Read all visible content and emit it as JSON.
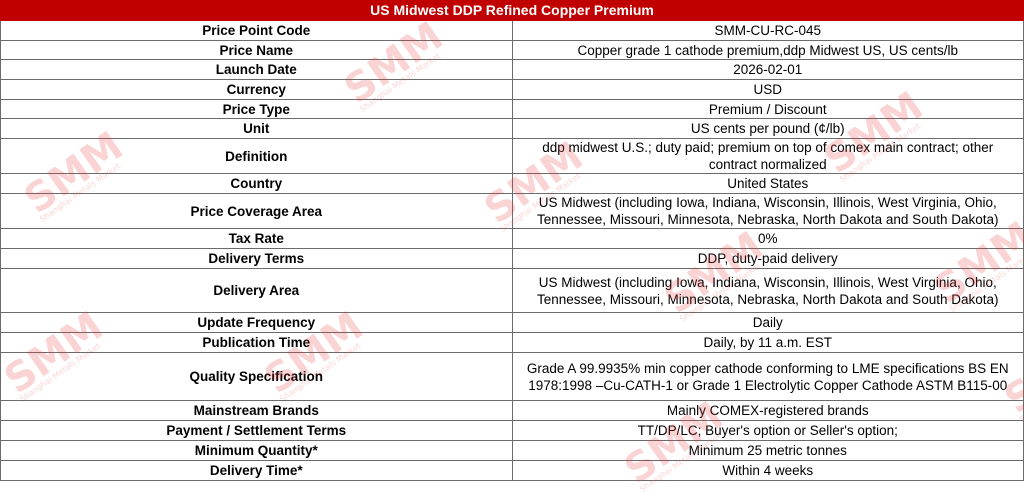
{
  "title": "US Midwest DDP Refined Copper Premium",
  "watermark": {
    "logo": "SMM",
    "subtitle": "Shanghai Metals Market"
  },
  "colors": {
    "header_bg": "#c00000",
    "header_text": "#ffffff",
    "watermark": "#e63c3c"
  },
  "rows": [
    {
      "label": "Price Point Code",
      "value": "SMM-CU-RC-045"
    },
    {
      "label": "Price Name",
      "value": "Copper grade 1 cathode premium,ddp Midwest US, US cents/lb"
    },
    {
      "label": "Launch Date",
      "value": "2026-02-01"
    },
    {
      "label": "Currency",
      "value": "USD"
    },
    {
      "label": "Price Type",
      "value": "Premium / Discount"
    },
    {
      "label": "Unit",
      "value": "US cents per pound (¢/lb)"
    },
    {
      "label": "Definition",
      "value": "ddp midwest U.S.; duty paid; premium on top of comex main contract; other contract normalized"
    },
    {
      "label": "Country",
      "value": "United States"
    },
    {
      "label": "Price Coverage Area",
      "value": "US Midwest (including Iowa, Indiana, Wisconsin, Illinois, West Virginia, Ohio, Tennessee, Missouri, Minnesota, Nebraska, North Dakota and South Dakota)"
    },
    {
      "label": "Tax Rate",
      "value": "0%"
    },
    {
      "label": "Delivery Terms",
      "value": "DDP, duty-paid delivery"
    },
    {
      "label": "Delivery Area",
      "value": "US Midwest (including Iowa, Indiana, Wisconsin, Illinois, West Virginia, Ohio, Tennessee, Missouri, Minnesota, Nebraska, North Dakota and South Dakota)"
    },
    {
      "label": "Update Frequency",
      "value": "Daily"
    },
    {
      "label": "Publication Time",
      "value": "Daily, by 11 a.m. EST"
    },
    {
      "label": "Quality Specification",
      "value": "Grade A 99.9935% min copper cathode conforming to LME specifications BS EN 1978:1998 –Cu-CATH-1 or Grade 1 Electrolytic Copper Cathode ASTM B115-00"
    },
    {
      "label": "Mainstream Brands",
      "value": "Mainly COMEX-registered brands"
    },
    {
      "label": "Payment / Settlement Terms",
      "value": "TT/DP/LC;  Buyer's option or Seller's option;"
    },
    {
      "label": "Minimum Quantity*",
      "value": "Minimum 25 metric tonnes"
    },
    {
      "label": "Delivery Time*",
      "value": "Within 4 weeks"
    }
  ]
}
